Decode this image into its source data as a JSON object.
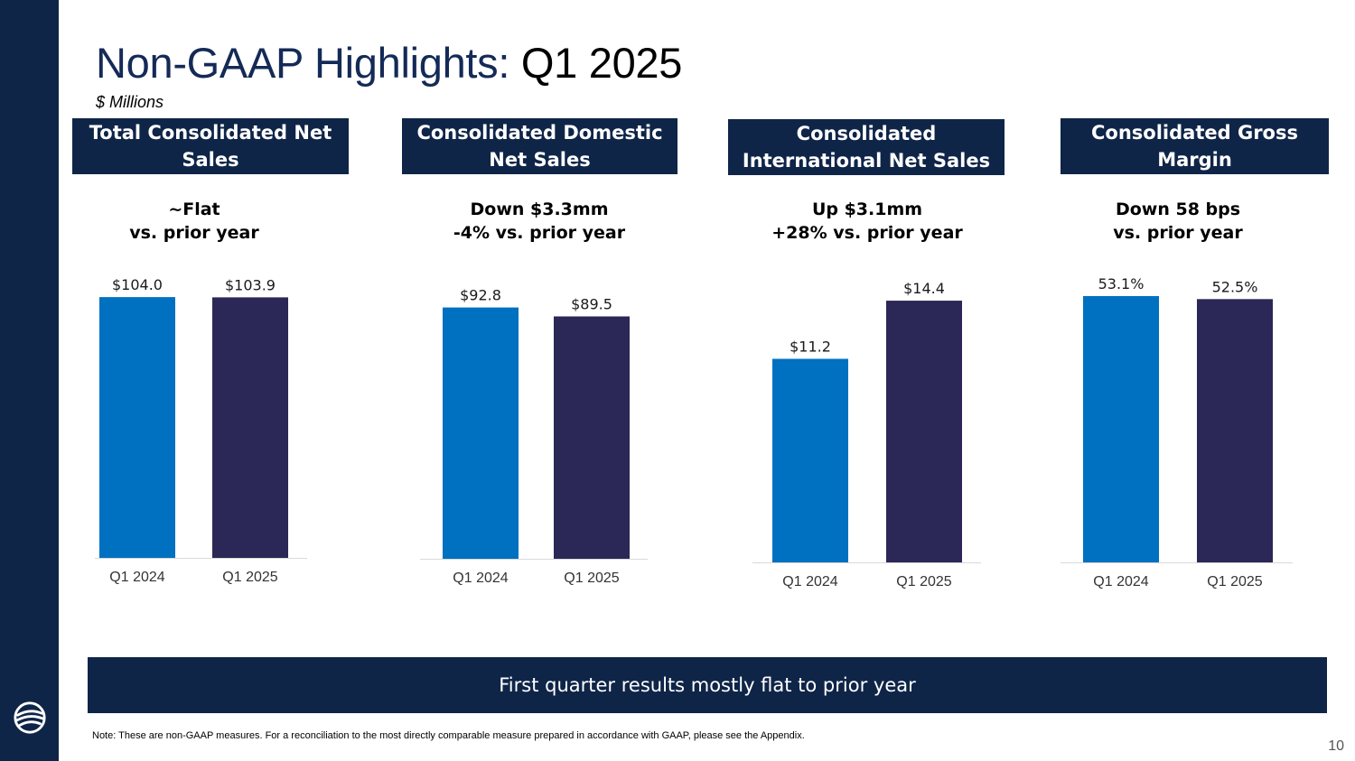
{
  "slide": {
    "title_main": "Non-GAAP Highlights: ",
    "title_period": "Q1 2025",
    "subtitle": "$ Millions",
    "footer_banner": "First quarter results mostly flat to prior year",
    "footnote": "Note: These are non-GAAP measures. For a reconciliation to the most directly comparable measure prepared in accordance with GAAP, please see the Appendix.",
    "page_number": "10",
    "logo_icon": "globe-swoosh-icon"
  },
  "colors": {
    "navy": "#0f2548",
    "bar_prior": "#0070c0",
    "bar_current": "#2b2757"
  },
  "panels": [
    {
      "header": "Total Consolidated Net Sales",
      "change_line1": "~Flat",
      "change_line2": "vs. prior year"
    },
    {
      "header": "Consolidated Domestic Net Sales",
      "change_line1": "Down $3.3mm",
      "change_line2": "-4% vs. prior year"
    },
    {
      "header": "Consolidated International Net Sales",
      "change_line1": "Up $3.1mm",
      "change_line2": "+28% vs. prior year"
    },
    {
      "header": "Consolidated Gross Margin",
      "change_line1": "Down 58 bps",
      "change_line2": "vs. prior year"
    }
  ],
  "chart_data": [
    {
      "type": "bar",
      "title": "Total Consolidated Net Sales",
      "categories": [
        "Q1 2024",
        "Q1 2025"
      ],
      "values": [
        104.0,
        103.9
      ],
      "labels": [
        "$104.0",
        "$103.9"
      ],
      "ylim": [
        0,
        108
      ]
    },
    {
      "type": "bar",
      "title": "Consolidated Domestic Net Sales",
      "categories": [
        "Q1 2024",
        "Q1 2025"
      ],
      "values": [
        92.8,
        89.5
      ],
      "labels": [
        "$92.8",
        "$89.5"
      ],
      "ylim": [
        0,
        100
      ]
    },
    {
      "type": "bar",
      "title": "Consolidated International Net Sales",
      "categories": [
        "Q1 2024",
        "Q1 2025"
      ],
      "values": [
        11.2,
        14.4
      ],
      "labels": [
        "$11.2",
        "$14.4"
      ],
      "ylim": [
        0,
        14.9
      ]
    },
    {
      "type": "bar",
      "title": "Consolidated Gross Margin",
      "categories": [
        "Q1 2024",
        "Q1 2025"
      ],
      "values": [
        53.1,
        52.5
      ],
      "labels": [
        "53.1%",
        "52.5%"
      ],
      "ylim": [
        0,
        54
      ]
    }
  ]
}
